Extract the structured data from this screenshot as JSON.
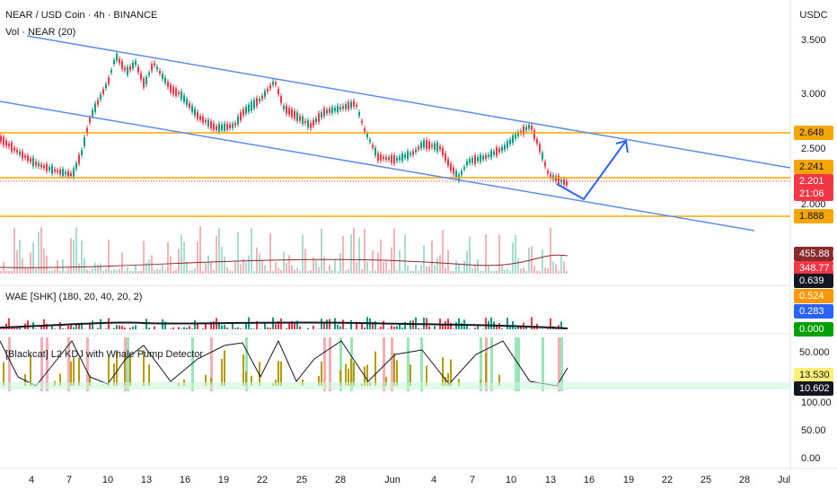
{
  "header": {
    "symbol": "NEAR / USD Coin · 4h · BINANCE",
    "volume": "Vol · NEAR (20)",
    "currency": "USDC"
  },
  "price_axis": [
    "3.500",
    "3.000",
    "2.500",
    "2.000"
  ],
  "price_tags": {
    "resistance": "2.648",
    "support_upper": "2.241",
    "last": "2.201",
    "countdown": "21:06",
    "support_lower": "1.888"
  },
  "volume_tags": [
    "455.88 K",
    "348.77 K"
  ],
  "wae": {
    "title": "WAE [SHK] (180, 20, 40, 20, 2)",
    "tags": [
      "0.639",
      "0.524",
      "0.283",
      "0.000"
    ]
  },
  "kdj": {
    "title": "[Blackcat] L2 KDJ with Whale Pump Detector",
    "tags": [
      "50.000",
      "13.530",
      "10.602"
    ],
    "axis": [
      "100.00",
      "50.00",
      "0.00"
    ]
  },
  "time_axis": [
    "4",
    "7",
    "10",
    "13",
    "16",
    "19",
    "22",
    "25",
    "28",
    "Jun",
    "4",
    "7",
    "10",
    "13",
    "16",
    "19",
    "22",
    "25",
    "28",
    "Jul"
  ]
}
